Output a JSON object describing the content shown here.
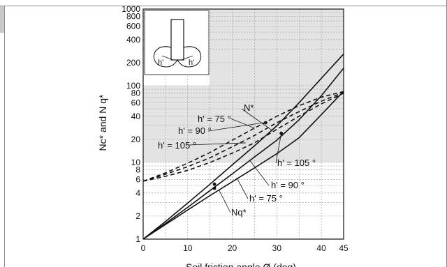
{
  "chart_data": {
    "type": "line",
    "title": "",
    "xlabel": "Soil friction angle  Ø  (deg)",
    "ylabel": "Nc* and N q*",
    "xscale": "linear",
    "yscale": "log",
    "xlim": [
      0,
      45
    ],
    "ylim": [
      1,
      1000
    ],
    "x_ticks": [
      0,
      10,
      20,
      30,
      40,
      45
    ],
    "x_tick_labels": [
      "0",
      "10",
      "20",
      "30",
      "40",
      "45"
    ],
    "y_ticks": [
      1,
      2,
      4,
      6,
      8,
      10,
      20,
      40,
      60,
      80,
      100,
      200,
      400,
      600,
      800,
      1000
    ],
    "y_tick_labels": [
      "1",
      "2",
      "4",
      "6",
      "8",
      "10",
      "20",
      "40",
      "60",
      "80",
      "100",
      "200",
      "400",
      "600",
      "800",
      "1000"
    ],
    "grid": true,
    "series": [
      {
        "name": "N*",
        "group": "Nc*",
        "style": "dashed",
        "label_text": "h' = 75 °",
        "x": [
          0,
          5,
          10,
          15,
          20,
          25,
          30,
          35,
          40,
          45
        ],
        "y": [
          5.7,
          7.3,
          9.8,
          13.5,
          19.5,
          28,
          40,
          55,
          71,
          84
        ]
      },
      {
        "name": "N*",
        "group": "Nc*",
        "style": "dashed",
        "label_text": "h' = 90 °",
        "x": [
          0,
          5,
          10,
          15,
          20,
          25,
          30,
          35,
          40,
          45
        ],
        "y": [
          5.7,
          7,
          8.8,
          11.5,
          16,
          22.5,
          33,
          46,
          63,
          82
        ]
      },
      {
        "name": "N*",
        "group": "Nc*",
        "style": "dashed",
        "label_text": "h' = 105 °",
        "x": [
          0,
          5,
          10,
          15,
          20,
          25,
          30,
          35,
          40,
          45
        ],
        "y": [
          5.7,
          6.6,
          7.9,
          10,
          13.2,
          18,
          27,
          40,
          58,
          80
        ]
      },
      {
        "name": "Nq*",
        "group": "Nq*",
        "style": "solid",
        "label_text": "h' = 105 °",
        "x": [
          0,
          5,
          10,
          15,
          20,
          25,
          30,
          35,
          40,
          45
        ],
        "y": [
          1,
          1.7,
          2.95,
          5.2,
          9.3,
          16.5,
          30,
          60,
          125,
          260
        ]
      },
      {
        "name": "Nq*",
        "group": "Nq*",
        "style": "solid",
        "label_text": "h' = 90 °",
        "x": [
          0,
          5,
          10,
          15,
          20,
          25,
          30,
          35,
          40,
          45
        ],
        "y": [
          1,
          1.6,
          2.6,
          4.3,
          7.1,
          11.8,
          19.5,
          36,
          74,
          170
        ]
      },
      {
        "name": "Nq*",
        "group": "Nq*",
        "style": "solid",
        "label_text": "h' = 75 °",
        "x": [
          0,
          5,
          10,
          15,
          20,
          25,
          30,
          35,
          40,
          45
        ],
        "y": [
          1,
          1.55,
          2.4,
          3.7,
          5.6,
          8.5,
          13,
          21,
          42,
          85
        ]
      }
    ],
    "markers": [
      {
        "x": 16,
        "y": 4.6
      },
      {
        "x": 16,
        "y": 5.2
      },
      {
        "x": 27.5,
        "y": 33
      },
      {
        "x": 31,
        "y": 24
      }
    ],
    "annotations": {
      "n_star": "N*",
      "nq_star": "Nq*",
      "nc_75": "h' = 75 °",
      "nc_90": "h' = 90 °",
      "nc_105": "h' = 105 °",
      "nq_105": "h' = 105 °",
      "nq_90": "h' = 90 °",
      "nq_75": "h' = 75 °",
      "inset_left": "h'",
      "inset_right": "h'"
    },
    "colors": {
      "line": "#111111",
      "grid": "#9a9a9a",
      "shade": "#e3e3e3",
      "background": "#ffffff"
    }
  }
}
